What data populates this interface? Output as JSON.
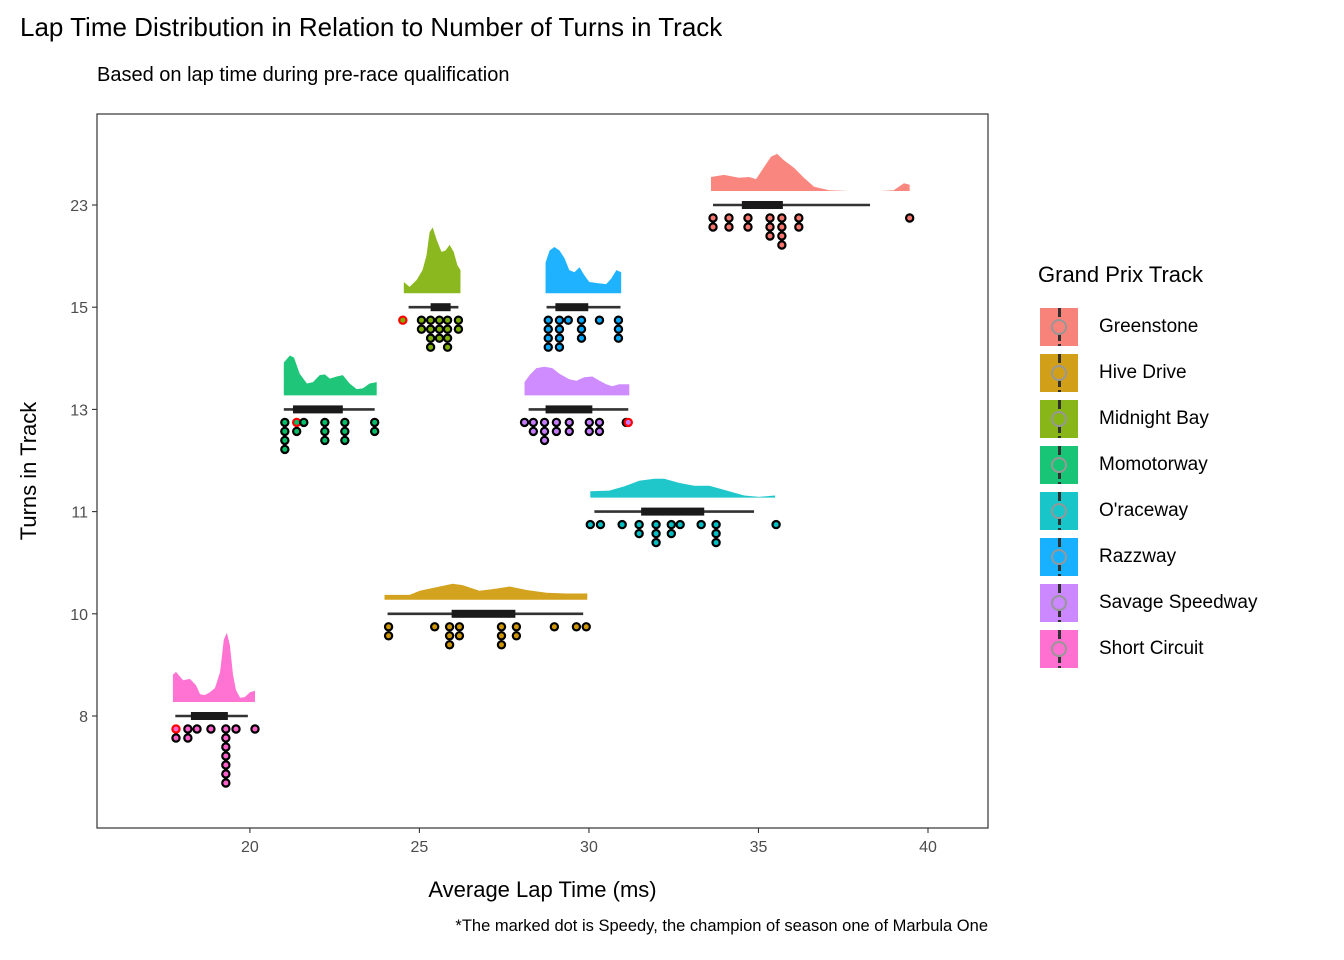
{
  "chart_data": {
    "type": "raincloud",
    "title": "Lap Time Distribution in Relation to Number of Turns in Track",
    "subtitle": "Based on lap time during pre-race qualification",
    "xlabel": "Average Lap Time (ms)",
    "ylabel": "Turns in Track",
    "caption": "*The marked dot is Speedy, the champion of season one of Marbula One",
    "xlim": [
      15.49,
      41.77
    ],
    "x_ticks": [
      20,
      25,
      30,
      35,
      40
    ],
    "y_categories": [
      "8",
      "10",
      "11",
      "13",
      "15",
      "23"
    ],
    "grid": false,
    "legend_position": "right",
    "legend_title": "Grand Prix Track",
    "speedy_color": "#FF0000",
    "series": [
      {
        "name": "Greenstone",
        "turns": "23",
        "color": "#F8766D",
        "box": {
          "min": 33.66,
          "q1": 34.51,
          "q3": 35.72,
          "max": 38.29
        },
        "density": [
          [
            33.6,
            0.2
          ],
          [
            33.98,
            0.23
          ],
          [
            34.43,
            0.19
          ],
          [
            34.72,
            0.2
          ],
          [
            34.93,
            0.17
          ],
          [
            35.16,
            0.34
          ],
          [
            35.37,
            0.49
          ],
          [
            35.55,
            0.53
          ],
          [
            35.75,
            0.44
          ],
          [
            36.05,
            0.33
          ],
          [
            36.34,
            0.19
          ],
          [
            36.64,
            0.06
          ],
          [
            37.08,
            0.01
          ],
          [
            37.67,
            0
          ],
          [
            38.55,
            0
          ],
          [
            38.99,
            0.01
          ],
          [
            39.29,
            0.11
          ],
          [
            39.46,
            0.09
          ]
        ],
        "dots": [
          [
            33.66,
            2,
            0
          ],
          [
            34.13,
            2,
            0
          ],
          [
            34.69,
            2,
            0
          ],
          [
            35.34,
            3,
            0
          ],
          [
            35.69,
            4,
            0
          ],
          [
            36.19,
            2,
            0
          ],
          [
            39.46,
            1,
            0
          ]
        ]
      },
      {
        "name": "Hive Drive",
        "turns": "10",
        "color": "#CD9600",
        "box": {
          "min": 24.06,
          "q1": 25.95,
          "q3": 27.83,
          "max": 29.83
        },
        "density": [
          [
            23.97,
            0.07
          ],
          [
            24.71,
            0.07
          ],
          [
            25.01,
            0.13
          ],
          [
            25.6,
            0.19
          ],
          [
            25.98,
            0.23
          ],
          [
            26.27,
            0.21
          ],
          [
            26.77,
            0.13
          ],
          [
            27.27,
            0.16
          ],
          [
            27.66,
            0.19
          ],
          [
            28.16,
            0.14
          ],
          [
            28.75,
            0.1
          ],
          [
            29.33,
            0.09
          ],
          [
            29.95,
            0.09
          ]
        ],
        "dots": [
          [
            24.09,
            2,
            0
          ],
          [
            25.45,
            1,
            0
          ],
          [
            25.89,
            3,
            0
          ],
          [
            26.18,
            2,
            0
          ],
          [
            27.42,
            3,
            0
          ],
          [
            27.86,
            2,
            0
          ],
          [
            28.98,
            1,
            0
          ],
          [
            29.63,
            1,
            0
          ],
          [
            29.92,
            1,
            0
          ]
        ]
      },
      {
        "name": "Midnight Bay",
        "turns": "15",
        "color": "#7CAE00",
        "box": {
          "min": 24.68,
          "q1": 25.33,
          "q3": 25.92,
          "max": 26.15
        },
        "density": [
          [
            24.54,
            0.16
          ],
          [
            24.71,
            0.09
          ],
          [
            24.92,
            0.19
          ],
          [
            25.09,
            0.33
          ],
          [
            25.21,
            0.54
          ],
          [
            25.3,
            0.87
          ],
          [
            25.39,
            0.94
          ],
          [
            25.51,
            0.76
          ],
          [
            25.65,
            0.59
          ],
          [
            25.77,
            0.61
          ],
          [
            25.89,
            0.69
          ],
          [
            26.01,
            0.59
          ],
          [
            26.12,
            0.4
          ],
          [
            26.21,
            0.33
          ]
        ],
        "dots": [
          [
            24.51,
            1,
            1
          ],
          [
            25.06,
            2,
            0
          ],
          [
            25.33,
            4,
            0
          ],
          [
            25.59,
            3,
            0
          ],
          [
            25.83,
            4,
            0
          ],
          [
            26.15,
            2,
            0
          ]
        ]
      },
      {
        "name": "Momotorway",
        "turns": "13",
        "color": "#00BE67",
        "box": {
          "min": 21.0,
          "q1": 21.27,
          "q3": 22.74,
          "max": 23.68
        },
        "density": [
          [
            21.0,
            0.47
          ],
          [
            21.18,
            0.57
          ],
          [
            21.3,
            0.54
          ],
          [
            21.47,
            0.31
          ],
          [
            21.68,
            0.17
          ],
          [
            21.86,
            0.19
          ],
          [
            22.06,
            0.29
          ],
          [
            22.21,
            0.3
          ],
          [
            22.36,
            0.24
          ],
          [
            22.56,
            0.27
          ],
          [
            22.74,
            0.29
          ],
          [
            22.94,
            0.17
          ],
          [
            23.15,
            0.09
          ],
          [
            23.33,
            0.1
          ],
          [
            23.53,
            0.17
          ],
          [
            23.74,
            0.19
          ]
        ],
        "dots": [
          [
            21.03,
            4,
            0
          ],
          [
            21.38,
            2,
            1
          ],
          [
            21.59,
            1,
            0
          ],
          [
            22.21,
            3,
            0
          ],
          [
            22.8,
            3,
            0
          ],
          [
            23.68,
            2,
            0
          ]
        ]
      },
      {
        "name": "O'raceway",
        "turns": "11",
        "color": "#00BFC4",
        "box": {
          "min": 30.16,
          "q1": 31.54,
          "q3": 33.4,
          "max": 34.87
        },
        "density": [
          [
            30.04,
            0.09
          ],
          [
            30.6,
            0.1
          ],
          [
            31.04,
            0.16
          ],
          [
            31.48,
            0.24
          ],
          [
            31.93,
            0.27
          ],
          [
            32.22,
            0.27
          ],
          [
            32.66,
            0.21
          ],
          [
            33.1,
            0.17
          ],
          [
            33.55,
            0.17
          ],
          [
            33.99,
            0.11
          ],
          [
            34.58,
            0.03
          ],
          [
            35.02,
            0.01
          ],
          [
            35.49,
            0.03
          ]
        ],
        "dots": [
          [
            30.04,
            1,
            0
          ],
          [
            30.34,
            1,
            0
          ],
          [
            30.98,
            1,
            0
          ],
          [
            31.48,
            2,
            0
          ],
          [
            31.98,
            3,
            0
          ],
          [
            32.43,
            2,
            0
          ],
          [
            32.69,
            1,
            0
          ],
          [
            33.31,
            1,
            0
          ],
          [
            33.75,
            3,
            0
          ],
          [
            35.52,
            1,
            0
          ]
        ]
      },
      {
        "name": "Razzway",
        "turns": "15",
        "color": "#00A9FF",
        "box": {
          "min": 28.75,
          "q1": 29.01,
          "q3": 29.98,
          "max": 30.93
        },
        "density": [
          [
            28.72,
            0.44
          ],
          [
            28.84,
            0.61
          ],
          [
            28.98,
            0.66
          ],
          [
            29.13,
            0.61
          ],
          [
            29.28,
            0.5
          ],
          [
            29.42,
            0.33
          ],
          [
            29.57,
            0.3
          ],
          [
            29.72,
            0.37
          ],
          [
            29.86,
            0.26
          ],
          [
            30.01,
            0.16
          ],
          [
            30.31,
            0.14
          ],
          [
            30.51,
            0.13
          ],
          [
            30.66,
            0.21
          ],
          [
            30.81,
            0.33
          ],
          [
            30.95,
            0.3
          ]
        ],
        "dots": [
          [
            28.8,
            4,
            0
          ],
          [
            29.13,
            4,
            0
          ],
          [
            29.39,
            1,
            0
          ],
          [
            29.78,
            3,
            0
          ],
          [
            30.31,
            1,
            0
          ],
          [
            30.87,
            3,
            0
          ]
        ]
      },
      {
        "name": "Savage Speedway",
        "turns": "13",
        "color": "#C77CFF",
        "box": {
          "min": 28.22,
          "q1": 28.72,
          "q3": 30.1,
          "max": 31.16
        },
        "density": [
          [
            28.1,
            0.19
          ],
          [
            28.25,
            0.29
          ],
          [
            28.45,
            0.39
          ],
          [
            28.69,
            0.41
          ],
          [
            28.92,
            0.39
          ],
          [
            29.13,
            0.31
          ],
          [
            29.42,
            0.23
          ],
          [
            29.63,
            0.21
          ],
          [
            29.86,
            0.26
          ],
          [
            30.1,
            0.27
          ],
          [
            30.31,
            0.21
          ],
          [
            30.51,
            0.16
          ],
          [
            30.69,
            0.13
          ],
          [
            30.89,
            0.16
          ],
          [
            31.19,
            0.16
          ]
        ],
        "dots": [
          [
            28.1,
            1,
            0
          ],
          [
            28.36,
            2,
            0
          ],
          [
            28.69,
            3,
            0
          ],
          [
            29.04,
            2,
            0
          ],
          [
            29.42,
            2,
            0
          ],
          [
            30.01,
            2,
            0
          ],
          [
            30.31,
            2,
            0
          ],
          [
            31.1,
            1,
            0
          ],
          [
            31.16,
            1,
            1
          ]
        ]
      },
      {
        "name": "Short Circuit",
        "turns": "8",
        "color": "#FF61CC",
        "box": {
          "min": 17.8,
          "q1": 18.26,
          "q3": 19.35,
          "max": 19.94
        },
        "density": [
          [
            17.73,
            0.39
          ],
          [
            17.82,
            0.43
          ],
          [
            18.03,
            0.31
          ],
          [
            18.23,
            0.33
          ],
          [
            18.41,
            0.24
          ],
          [
            18.53,
            0.11
          ],
          [
            18.67,
            0.1
          ],
          [
            18.82,
            0.14
          ],
          [
            18.97,
            0.2
          ],
          [
            19.12,
            0.43
          ],
          [
            19.23,
            0.89
          ],
          [
            19.32,
            0.99
          ],
          [
            19.41,
            0.81
          ],
          [
            19.5,
            0.39
          ],
          [
            19.59,
            0.17
          ],
          [
            19.71,
            0.06
          ],
          [
            19.85,
            0.07
          ],
          [
            20.0,
            0.14
          ],
          [
            20.15,
            0.16
          ]
        ],
        "dots": [
          [
            17.82,
            2,
            1
          ],
          [
            18.17,
            2,
            0
          ],
          [
            18.44,
            1,
            0
          ],
          [
            18.85,
            1,
            0
          ],
          [
            19.29,
            7,
            0
          ],
          [
            19.59,
            1,
            0
          ],
          [
            20.15,
            1,
            0
          ]
        ]
      }
    ]
  }
}
